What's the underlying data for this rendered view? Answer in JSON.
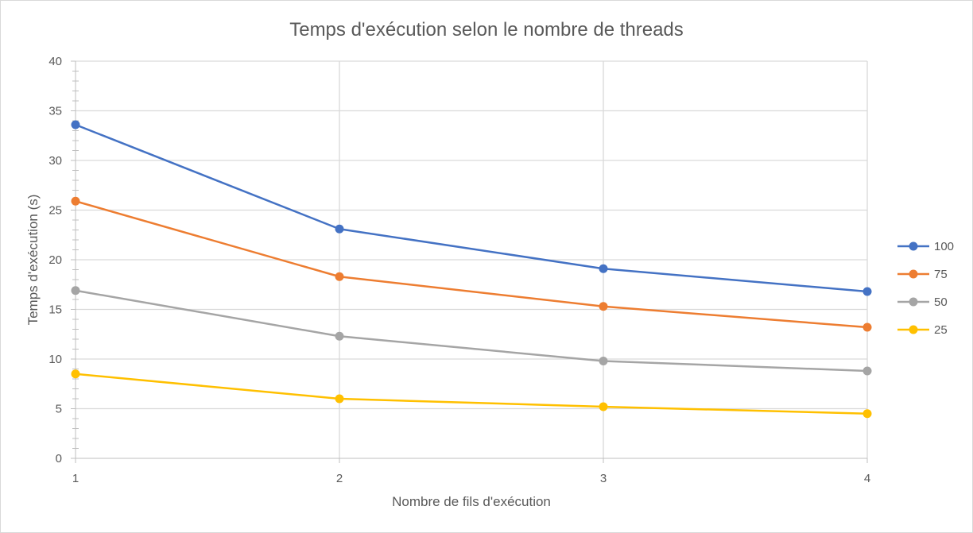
{
  "chart_data": {
    "type": "line",
    "title": "Temps d'exécution selon le nombre de threads",
    "xlabel": "Nombre de fils d'exécution",
    "ylabel": "Temps d'exécution (s)",
    "x": [
      1,
      2,
      3,
      4
    ],
    "ylim": [
      0,
      40
    ],
    "yticks": [
      0,
      5,
      10,
      15,
      20,
      25,
      30,
      35,
      40
    ],
    "grid": true,
    "legend_position": "right",
    "series": [
      {
        "name": "100",
        "color": "#4472C4",
        "values": [
          33.6,
          23.1,
          19.1,
          16.8
        ]
      },
      {
        "name": "75",
        "color": "#ED7D31",
        "values": [
          25.9,
          18.3,
          15.3,
          13.2
        ]
      },
      {
        "name": "50",
        "color": "#A5A5A5",
        "values": [
          16.9,
          12.3,
          9.8,
          8.8
        ]
      },
      {
        "name": "25",
        "color": "#FFC000",
        "values": [
          8.5,
          6.0,
          5.2,
          4.5
        ]
      }
    ]
  }
}
